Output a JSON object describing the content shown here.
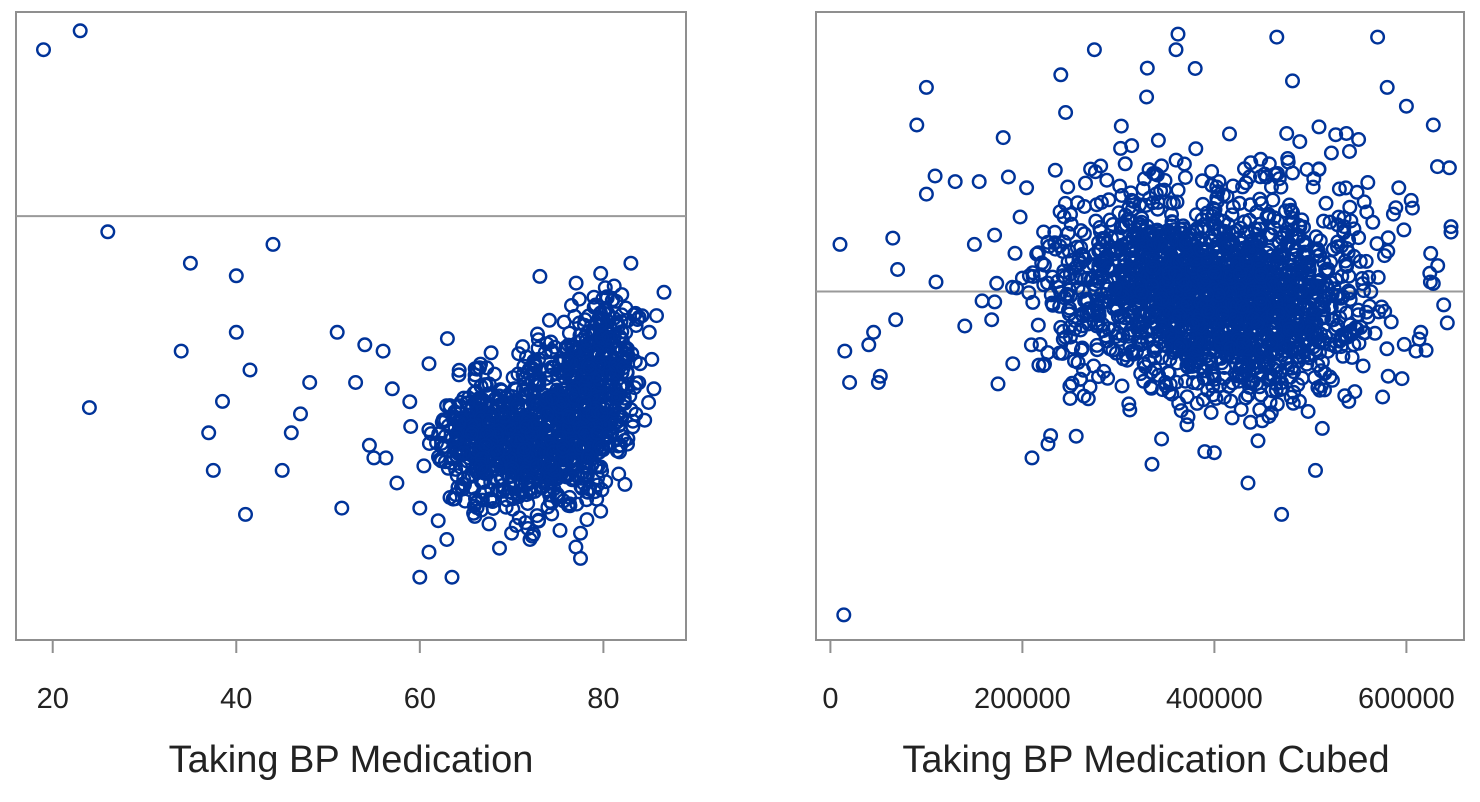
{
  "chart_data": [
    {
      "type": "scatter",
      "title": "",
      "xlabel": "Taking BP Medication",
      "ylabel": "",
      "xlim": [
        16,
        89
      ],
      "ylim": [
        0,
        1
      ],
      "xticks": [
        20,
        40,
        60,
        80
      ],
      "xtick_labels": [
        "20",
        "40",
        "60",
        "80"
      ],
      "reference_line_y": 0.325,
      "marker": "open-circle",
      "color": "#003399",
      "points": [
        [
          19,
          0.06
        ],
        [
          23,
          0.03
        ],
        [
          26,
          0.35
        ],
        [
          24,
          0.63
        ],
        [
          35,
          0.4
        ],
        [
          40,
          0.42
        ],
        [
          44,
          0.37
        ],
        [
          34,
          0.54
        ],
        [
          40,
          0.51
        ],
        [
          41.5,
          0.57
        ],
        [
          37,
          0.67
        ],
        [
          38.5,
          0.62
        ],
        [
          37.5,
          0.73
        ],
        [
          41,
          0.8
        ],
        [
          45,
          0.73
        ],
        [
          46,
          0.67
        ],
        [
          47,
          0.64
        ],
        [
          48,
          0.59
        ],
        [
          51,
          0.51
        ],
        [
          51.5,
          0.79
        ],
        [
          53,
          0.59
        ],
        [
          54,
          0.53
        ],
        [
          54.5,
          0.69
        ],
        [
          55,
          0.71
        ],
        [
          56,
          0.54
        ],
        [
          57,
          0.6
        ],
        [
          57.5,
          0.75
        ],
        [
          59,
          0.66
        ],
        [
          60,
          0.79
        ],
        [
          60,
          0.9
        ],
        [
          63.5,
          0.9
        ],
        [
          61,
          0.86
        ],
        [
          62,
          0.81
        ],
        [
          61,
          0.56
        ],
        [
          63,
          0.52
        ],
        [
          70,
          0.83
        ],
        [
          72,
          0.84
        ],
        [
          77.5,
          0.83
        ],
        [
          77.5,
          0.87
        ],
        [
          83,
          0.4
        ],
        [
          82,
          0.45
        ],
        [
          83.5,
          0.48
        ],
        [
          85,
          0.51
        ],
        [
          84,
          0.56
        ],
        [
          85.5,
          0.6
        ],
        [
          84.5,
          0.65
        ],
        [
          78,
          0.49
        ],
        [
          79,
          0.47
        ]
      ],
      "dense_clusters": [
        {
          "cx": 71,
          "cy": 0.69,
          "sx": 4.2,
          "sy": 0.055,
          "n": 520
        },
        {
          "cx": 77,
          "cy": 0.63,
          "sx": 3.0,
          "sy": 0.07,
          "n": 380
        },
        {
          "cx": 80.5,
          "cy": 0.55,
          "sx": 1.8,
          "sy": 0.06,
          "n": 170
        },
        {
          "cx": 66,
          "cy": 0.68,
          "sx": 2.2,
          "sy": 0.05,
          "n": 130
        }
      ]
    },
    {
      "type": "scatter",
      "title": "",
      "xlabel": "Taking BP Medication Cubed",
      "ylabel": "",
      "xlim": [
        -15000,
        660000
      ],
      "ylim": [
        0,
        1
      ],
      "xticks": [
        0,
        200000,
        400000,
        600000
      ],
      "xtick_labels": [
        "0",
        "200000",
        "400000",
        "600000"
      ],
      "reference_line_y": 0.445,
      "marker": "open-circle",
      "color": "#003399",
      "points": [
        [
          10000,
          0.37
        ],
        [
          15000,
          0.54
        ],
        [
          20000,
          0.59
        ],
        [
          14000,
          0.96
        ],
        [
          50000,
          0.59
        ],
        [
          52000,
          0.58
        ],
        [
          40000,
          0.53
        ],
        [
          45000,
          0.51
        ],
        [
          65000,
          0.36
        ],
        [
          70000,
          0.41
        ],
        [
          68000,
          0.49
        ],
        [
          90000,
          0.18
        ],
        [
          100000,
          0.12
        ],
        [
          100000,
          0.29
        ],
        [
          110000,
          0.43
        ],
        [
          130000,
          0.27
        ],
        [
          140000,
          0.5
        ],
        [
          150000,
          0.37
        ],
        [
          155000,
          0.27
        ],
        [
          158000,
          0.46
        ],
        [
          168000,
          0.49
        ],
        [
          180000,
          0.2
        ],
        [
          190000,
          0.56
        ],
        [
          210000,
          0.71
        ],
        [
          240000,
          0.1
        ],
        [
          245000,
          0.16
        ],
        [
          275000,
          0.06
        ],
        [
          360000,
          0.06
        ],
        [
          380000,
          0.09
        ],
        [
          465000,
          0.04
        ],
        [
          570000,
          0.04
        ],
        [
          580000,
          0.12
        ],
        [
          600000,
          0.15
        ],
        [
          628000,
          0.18
        ],
        [
          605000,
          0.3
        ],
        [
          625000,
          0.43
        ],
        [
          615000,
          0.51
        ],
        [
          610000,
          0.54
        ],
        [
          470000,
          0.8
        ],
        [
          435000,
          0.75
        ],
        [
          345000,
          0.68
        ],
        [
          335000,
          0.72
        ],
        [
          390000,
          0.7
        ],
        [
          540000,
          0.62
        ]
      ],
      "dense_clusters": [
        {
          "cx": 400000,
          "cy": 0.46,
          "sx": 65000,
          "sy": 0.075,
          "n": 1000
        },
        {
          "cx": 320000,
          "cy": 0.41,
          "sx": 45000,
          "sy": 0.06,
          "n": 220
        },
        {
          "cx": 470000,
          "cy": 0.5,
          "sx": 45000,
          "sy": 0.07,
          "n": 260
        },
        {
          "cx": 400000,
          "cy": 0.38,
          "sx": 90000,
          "sy": 0.1,
          "n": 260
        },
        {
          "cx": 540000,
          "cy": 0.38,
          "sx": 40000,
          "sy": 0.1,
          "n": 60
        },
        {
          "cx": 250000,
          "cy": 0.47,
          "sx": 35000,
          "sy": 0.08,
          "n": 70
        }
      ]
    }
  ]
}
